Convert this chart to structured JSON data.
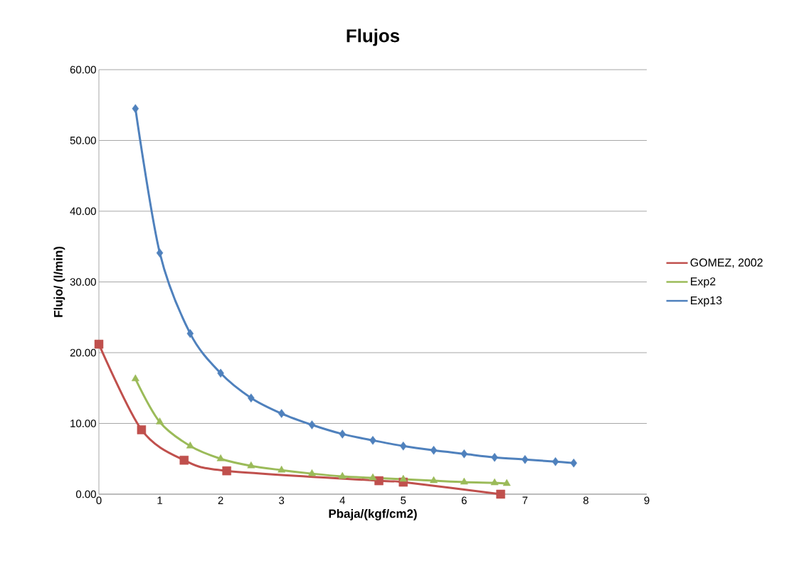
{
  "chart_data": {
    "type": "line",
    "title": "Flujos",
    "xlabel": "Pbaja/(kgf/cm2)",
    "ylabel": "Flujo/ (l/min)",
    "xlim": [
      0,
      9
    ],
    "xticks": [
      0,
      1,
      2,
      3,
      4,
      5,
      6,
      7,
      8,
      9
    ],
    "ylim": [
      0,
      60
    ],
    "yticks": [
      {
        "value": 0,
        "label": "0.00"
      },
      {
        "value": 10,
        "label": "10.00"
      },
      {
        "value": 20,
        "label": "20.00"
      },
      {
        "value": 30,
        "label": "30.00"
      },
      {
        "value": 40,
        "label": "40.00"
      },
      {
        "value": 50,
        "label": "50.00"
      },
      {
        "value": 60,
        "label": "60.00"
      }
    ],
    "grid": "y",
    "legend": "right",
    "series": [
      {
        "name": "GOMEZ, 2002",
        "color": "#c0504d",
        "marker": "square",
        "x": [
          0,
          0.7,
          1.4,
          2.1,
          4.6,
          5.0,
          6.6
        ],
        "values": [
          21.2,
          9.1,
          4.8,
          3.3,
          1.9,
          1.7,
          0.0
        ]
      },
      {
        "name": "Exp2",
        "color": "#9bbb59",
        "marker": "triangle",
        "x": [
          0.6,
          1,
          1.5,
          2,
          2.5,
          3,
          3.5,
          4,
          4.5,
          5,
          5.5,
          6,
          6.5,
          6.7
        ],
        "values": [
          16.3,
          10.2,
          6.8,
          5.0,
          4.0,
          3.4,
          2.9,
          2.5,
          2.3,
          2.1,
          1.9,
          1.7,
          1.6,
          1.5
        ]
      },
      {
        "name": "Exp13",
        "color": "#4f81bd",
        "marker": "diamond",
        "x": [
          0.6,
          1,
          1.5,
          2,
          2.5,
          3,
          3.5,
          4,
          4.5,
          5,
          5.5,
          6,
          6.5,
          7,
          7.5,
          7.8
        ],
        "values": [
          54.5,
          34.1,
          22.7,
          17.1,
          13.6,
          11.4,
          9.8,
          8.5,
          7.6,
          6.8,
          6.2,
          5.7,
          5.2,
          4.9,
          4.6,
          4.4
        ]
      }
    ]
  }
}
